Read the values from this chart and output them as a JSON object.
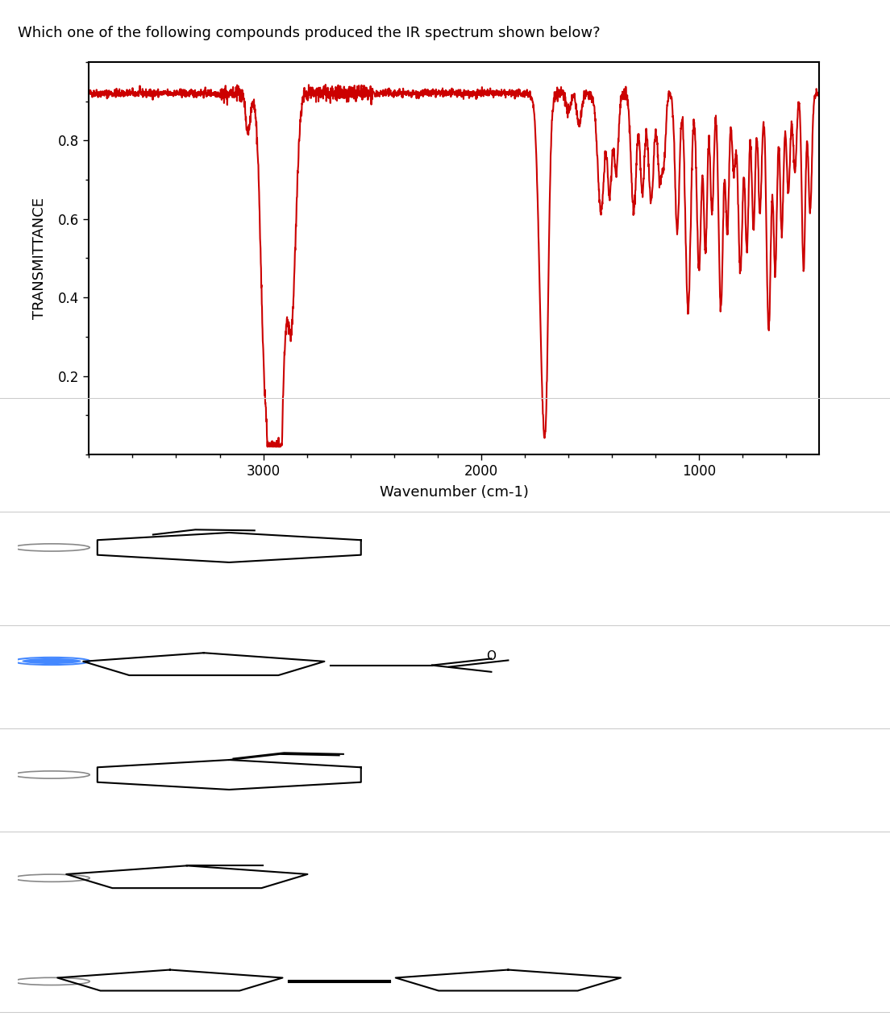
{
  "title": "Which one of the following compounds produced the IR spectrum shown below?",
  "xlabel": "Wavenumber (cm-1)",
  "ylabel": "TRANSMITTANCE",
  "xlim": [
    3800,
    450
  ],
  "ylim": [
    0.0,
    1.0
  ],
  "yticks": [
    0.2,
    0.4,
    0.6,
    0.8
  ],
  "xticks": [
    3000,
    2000,
    1000
  ],
  "spectrum_color": "#cc0000",
  "background_color": "#ffffff",
  "line_width": 1.5,
  "title_fontsize": 13,
  "axis_label_fontsize": 13,
  "tick_fontsize": 12
}
